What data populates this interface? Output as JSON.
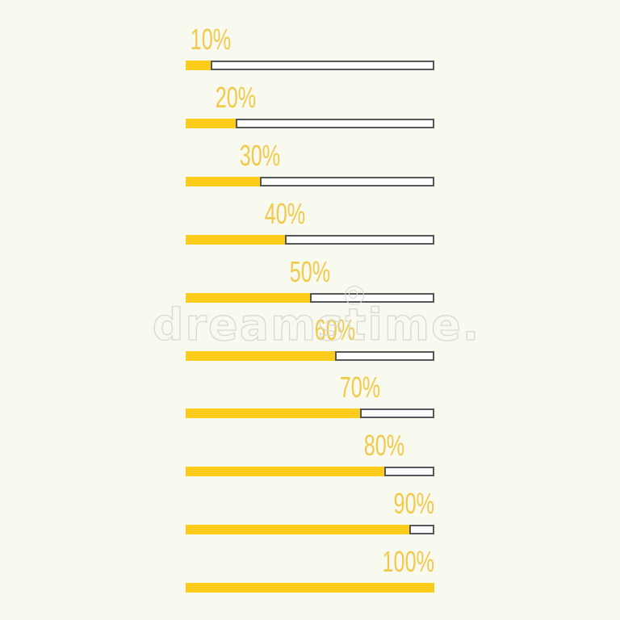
{
  "background_color": "#F9FAEF",
  "colors": {
    "bar_fill": "#FBCC1C",
    "label_text": "#F1C94B",
    "track_border": "#55565A",
    "track_background": "#FFFFFF",
    "watermark": "#D8D8D4"
  },
  "watermark": {
    "text": "dreamstime.",
    "registered_symbol": "®"
  },
  "chart_data": {
    "type": "bar",
    "title": "",
    "xlabel": "",
    "ylabel": "",
    "orientation": "horizontal",
    "categories": [
      "10%",
      "20%",
      "30%",
      "40%",
      "50%",
      "60%",
      "70%",
      "80%",
      "90%",
      "100%"
    ],
    "values": [
      10,
      20,
      30,
      40,
      50,
      60,
      70,
      80,
      90,
      100
    ],
    "unit": "%",
    "value_range": [
      0,
      100
    ],
    "grid": false,
    "legend": false,
    "label_position": "above-fill-end"
  }
}
